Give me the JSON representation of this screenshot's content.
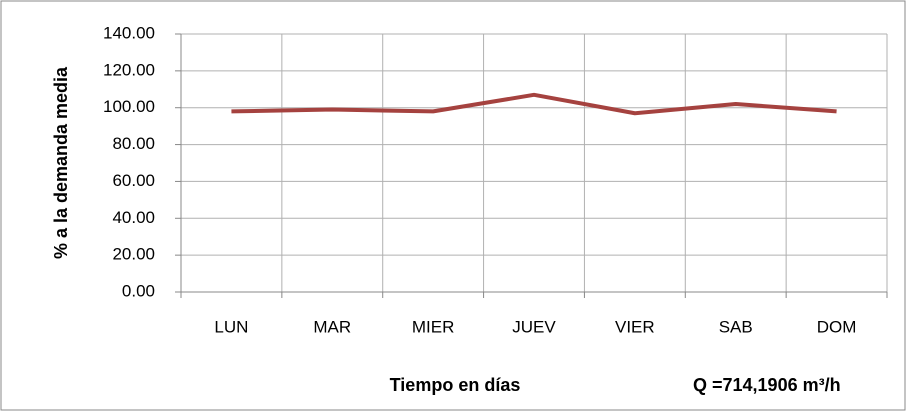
{
  "chart_data": {
    "type": "line",
    "x_label": "Tiempo en días",
    "y_label": "% a la demanda media",
    "annotation": "Q =714,1906 m³/h",
    "categories": [
      "LUN",
      "MAR",
      "MIER",
      "JUEV",
      "VIER",
      "SAB",
      "DOM"
    ],
    "series": [
      {
        "name": null,
        "color": "#a5423f",
        "values": [
          98,
          99,
          98,
          107,
          97,
          102,
          98
        ]
      }
    ],
    "ylim": [
      0,
      140
    ],
    "yticks": [
      {
        "value": 0,
        "label": "0.00"
      },
      {
        "value": 20,
        "label": "20.00"
      },
      {
        "value": 40,
        "label": "40.00"
      },
      {
        "value": 60,
        "label": "60.00"
      },
      {
        "value": 80,
        "label": "80.00"
      },
      {
        "value": 100,
        "label": "100.00"
      },
      {
        "value": 120,
        "label": "120.00"
      },
      {
        "value": 140,
        "label": "140.00"
      }
    ],
    "grid": true
  }
}
